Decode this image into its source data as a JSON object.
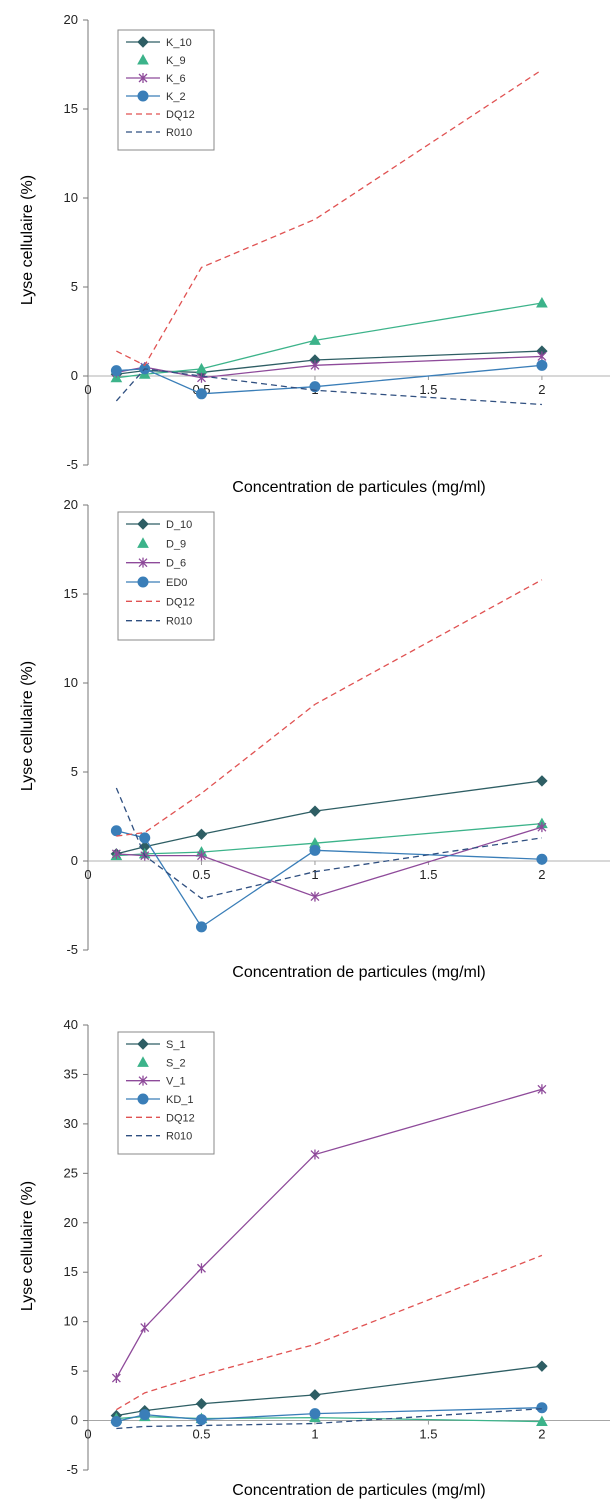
{
  "chart_data": [
    {
      "type": "line",
      "ylabel": "Lyse cellulaire (%)",
      "xlabel": "Concentration de particules (mg/ml)",
      "xlim": [
        0,
        2.3
      ],
      "ylim": [
        -5,
        20
      ],
      "xticks": [
        "0",
        "0.5",
        "1",
        "1.5",
        "2"
      ],
      "xtick_values": [
        0,
        0.5,
        1,
        1.5,
        2
      ],
      "yticks": [
        "-5",
        "0",
        "5",
        "10",
        "15",
        "20"
      ],
      "ytick_values": [
        -5,
        0,
        5,
        10,
        15,
        20
      ],
      "x": [
        0.125,
        0.25,
        0.5,
        1,
        2
      ],
      "legend_position": "top-left",
      "series": [
        {
          "name": "K_10",
          "color": "#2e5e64",
          "dash": "solid",
          "marker": "diamond",
          "values": [
            0.1,
            0.3,
            0.2,
            0.9,
            1.4
          ]
        },
        {
          "name": "K_9",
          "color": "#3cb38a",
          "dash": "solid",
          "marker": "triangle",
          "values": [
            -0.1,
            0.1,
            0.4,
            2.0,
            4.1
          ]
        },
        {
          "name": "K_6",
          "color": "#8e4a9a",
          "dash": "solid",
          "marker": "cross",
          "values": [
            0.2,
            0.5,
            -0.1,
            0.6,
            1.1
          ]
        },
        {
          "name": "K_2",
          "color": "#3a7eb8",
          "dash": "solid",
          "marker": "circle",
          "values": [
            0.3,
            0.4,
            -1.0,
            -0.6,
            0.6
          ]
        },
        {
          "name": "DQ12",
          "color": "#e05252",
          "dash": "dash",
          "marker": "none",
          "values": [
            1.4,
            0.6,
            6.1,
            8.8,
            17.2
          ]
        },
        {
          "name": "R010",
          "color": "#2f4f80",
          "dash": "dash",
          "marker": "none",
          "values": [
            -1.4,
            0.4,
            0.0,
            -0.8,
            -1.6
          ]
        }
      ]
    },
    {
      "type": "line",
      "ylabel": "Lyse cellulaire (%)",
      "xlabel": "Concentration de particules (mg/ml)",
      "xlim": [
        0,
        2.3
      ],
      "ylim": [
        -5,
        20
      ],
      "xticks": [
        "0",
        "0.5",
        "1",
        "1.5",
        "2"
      ],
      "xtick_values": [
        0,
        0.5,
        1,
        1.5,
        2
      ],
      "yticks": [
        "-5",
        "0",
        "5",
        "10",
        "15",
        "20"
      ],
      "ytick_values": [
        -5,
        0,
        5,
        10,
        15,
        20
      ],
      "x": [
        0.125,
        0.25,
        0.5,
        1,
        2
      ],
      "legend_position": "top-left",
      "series": [
        {
          "name": "D_10",
          "color": "#2e5e64",
          "dash": "solid",
          "marker": "diamond",
          "values": [
            0.4,
            0.8,
            1.5,
            2.8,
            4.5
          ]
        },
        {
          "name": "D_9",
          "color": "#3cb38a",
          "dash": "solid",
          "marker": "triangle",
          "values": [
            0.3,
            0.4,
            0.5,
            1.0,
            2.1
          ]
        },
        {
          "name": "D_6",
          "color": "#8e4a9a",
          "dash": "solid",
          "marker": "cross",
          "values": [
            0.4,
            0.3,
            0.3,
            -2.0,
            1.9
          ]
        },
        {
          "name": "ED0",
          "color": "#3a7eb8",
          "dash": "solid",
          "marker": "circle",
          "values": [
            1.7,
            1.3,
            -3.7,
            0.6,
            0.1
          ]
        },
        {
          "name": "DQ12",
          "color": "#e05252",
          "dash": "dash",
          "marker": "none",
          "values": [
            1.4,
            1.6,
            3.8,
            8.8,
            15.8
          ]
        },
        {
          "name": "R010",
          "color": "#2f4f80",
          "dash": "dash",
          "marker": "none",
          "values": [
            4.1,
            0.3,
            -2.1,
            -0.6,
            1.3
          ]
        }
      ]
    },
    {
      "type": "line",
      "ylabel": "Lyse cellulaire (%)",
      "xlabel": "Concentration de particules (mg/ml)",
      "xlim": [
        0,
        2.3
      ],
      "ylim": [
        -5,
        40
      ],
      "xticks": [
        "0",
        "0.5",
        "1",
        "1.5",
        "2"
      ],
      "xtick_values": [
        0,
        0.5,
        1,
        1.5,
        2
      ],
      "yticks": [
        "-5",
        "0",
        "5",
        "10",
        "15",
        "20",
        "25",
        "30",
        "35",
        "40"
      ],
      "ytick_values": [
        -5,
        0,
        5,
        10,
        15,
        20,
        25,
        30,
        35,
        40
      ],
      "x": [
        0.125,
        0.25,
        0.5,
        1,
        2
      ],
      "legend_position": "top-left",
      "series": [
        {
          "name": "S_1",
          "color": "#2e5e64",
          "dash": "solid",
          "marker": "diamond",
          "values": [
            0.5,
            1.0,
            1.7,
            2.6,
            5.5
          ]
        },
        {
          "name": "S_2",
          "color": "#3cb38a",
          "dash": "solid",
          "marker": "triangle",
          "values": [
            0.2,
            0.4,
            0.2,
            0.3,
            -0.1
          ]
        },
        {
          "name": "V_1",
          "color": "#8e4a9a",
          "dash": "solid",
          "marker": "cross",
          "values": [
            4.3,
            9.4,
            15.4,
            26.9,
            33.5
          ]
        },
        {
          "name": "KD_1",
          "color": "#3a7eb8",
          "dash": "solid",
          "marker": "circle",
          "values": [
            -0.1,
            0.6,
            0.1,
            0.7,
            1.3
          ]
        },
        {
          "name": "DQ12",
          "color": "#e05252",
          "dash": "dash",
          "marker": "none",
          "values": [
            1.1,
            2.8,
            4.6,
            7.7,
            16.7
          ]
        },
        {
          "name": "R010",
          "color": "#2f4f80",
          "dash": "dash",
          "marker": "none",
          "values": [
            -0.8,
            -0.6,
            -0.5,
            -0.3,
            1.2
          ]
        }
      ]
    }
  ]
}
